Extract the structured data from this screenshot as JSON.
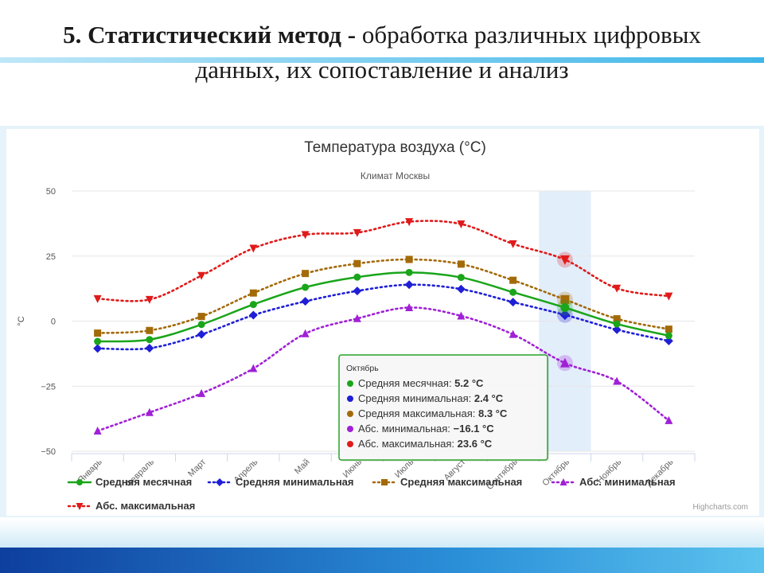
{
  "slide": {
    "title_bold": "5. Статистический метод -",
    "title_rest": " обработка различных цифровых данных, их сопоставление и анализ"
  },
  "colors": {
    "series": [
      "#1aa51a",
      "#1f1fd6",
      "#a36a08",
      "#a020d6",
      "#e01a1a"
    ],
    "plot_band": "#e3eefb",
    "grid": "#e6e6e6",
    "tooltip_border": "#27a327"
  },
  "chart_data": {
    "type": "line",
    "title": "Температура воздуха (°C)",
    "subtitle": "Климат Москвы",
    "ylabel": "°C",
    "ylim": [
      -50,
      50
    ],
    "yticks": [
      50,
      25,
      0,
      -25,
      -50
    ],
    "categories": [
      "Январь",
      "Февраль",
      "Март",
      "Апрель",
      "Май",
      "Июнь",
      "Июль",
      "Август",
      "Сентябрь",
      "Октябрь",
      "Ноябрь",
      "Декабрь"
    ],
    "series": [
      {
        "name": "Средняя месячная",
        "marker": "circle",
        "line": "solid",
        "values": [
          -7.8,
          -7.1,
          -1.3,
          6.4,
          13.0,
          16.9,
          18.7,
          16.8,
          11.1,
          5.2,
          -1.1,
          -5.6
        ]
      },
      {
        "name": "Средняя минимальная",
        "marker": "diamond",
        "line": "dotted",
        "values": [
          -10.5,
          -10.4,
          -5.1,
          2.3,
          7.6,
          11.6,
          14.0,
          12.3,
          7.3,
          2.4,
          -3.3,
          -7.6
        ]
      },
      {
        "name": "Средняя максимальная",
        "marker": "square",
        "line": "dotted",
        "values": [
          -4.6,
          -3.6,
          1.8,
          10.8,
          18.3,
          22.1,
          23.7,
          21.9,
          15.7,
          8.3,
          0.9,
          -3.1
        ]
      },
      {
        "name": "Абс. минимальная",
        "marker": "triangle",
        "line": "dotted",
        "values": [
          -42.2,
          -35.1,
          -27.8,
          -18.2,
          -4.8,
          1.0,
          5.2,
          2.0,
          -5.1,
          -16.1,
          -23.1,
          -38.2
        ]
      },
      {
        "name": "Абс. максимальная",
        "marker": "triangle-down",
        "line": "dotted",
        "values": [
          8.6,
          8.3,
          17.5,
          28.0,
          33.2,
          34.0,
          38.2,
          37.3,
          29.7,
          23.6,
          12.6,
          9.6
        ]
      }
    ],
    "highlight_category": "Октябрь",
    "tooltip": {
      "title": "Октябрь",
      "rows": [
        {
          "label": "Средняя месячная:",
          "value": "5.2 °C"
        },
        {
          "label": "Средняя минимальная:",
          "value": "2.4 °C"
        },
        {
          "label": "Средняя максимальная:",
          "value": "8.3 °C"
        },
        {
          "label": "Абс. минимальная:",
          "value": "−16.1 °C"
        },
        {
          "label": "Абс. максимальная:",
          "value": "23.6 °C"
        }
      ]
    },
    "credits": "Highcharts.com",
    "grid": true,
    "legend_position": "bottom"
  }
}
